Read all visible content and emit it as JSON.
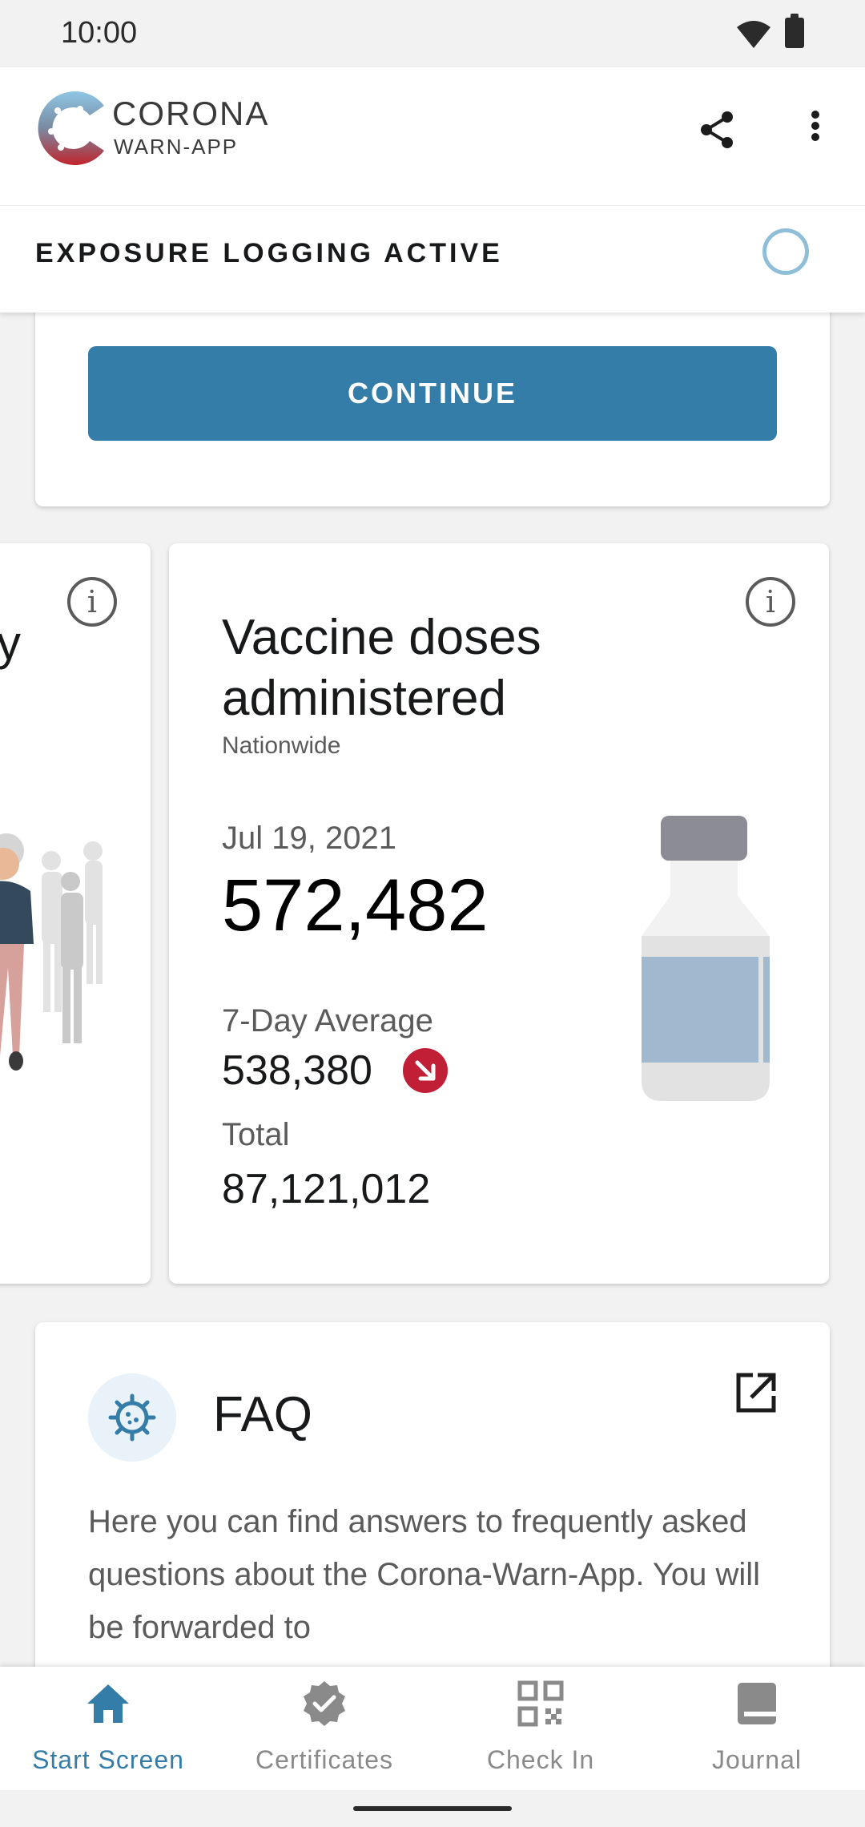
{
  "status_bar": {
    "time": "10:00"
  },
  "app_bar": {
    "logo_title": "CORONA",
    "logo_subtitle": "WARN-APP",
    "exposure_status": "EXPOSURE LOGGING ACTIVE"
  },
  "top_card": {
    "continue_label": "CONTINUE"
  },
  "partial_card": {
    "partial_text": "y"
  },
  "vaccine_card": {
    "title": "Vaccine doses administered",
    "subtitle": "Nationwide",
    "date": "Jul 19, 2021",
    "value": "572,482",
    "avg_label": "7-Day Average",
    "avg_value": "538,380",
    "total_label": "Total",
    "total_value": "87,121,012",
    "trend": "down",
    "trend_color": "#c01f36"
  },
  "faq_card": {
    "title": "FAQ",
    "text": "Here you can find answers to frequently asked questions about the Corona-Warn-App. You will be forwarded to"
  },
  "bottom_nav": {
    "items": [
      {
        "label": "Start Screen",
        "icon": "home-icon",
        "active": true
      },
      {
        "label": "Certificates",
        "icon": "certificate-badge-icon",
        "active": false
      },
      {
        "label": "Check In",
        "icon": "qr-code-icon",
        "active": false
      },
      {
        "label": "Journal",
        "icon": "journal-book-icon",
        "active": false
      }
    ]
  },
  "colors": {
    "accent": "#357da9",
    "background": "#f2f2f2",
    "card": "#ffffff",
    "trend_down": "#c01f36"
  }
}
